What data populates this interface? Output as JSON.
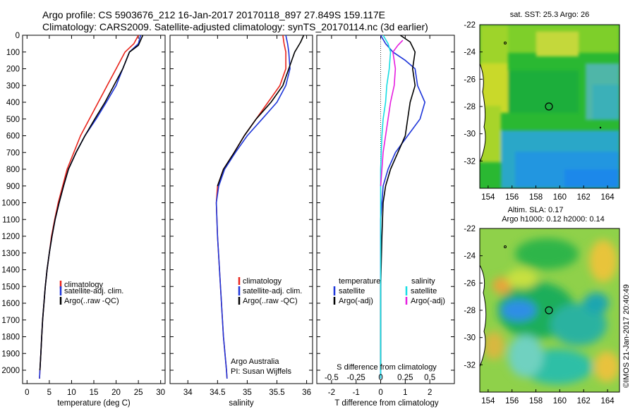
{
  "header": {
    "line1": "Argo profile: CS 5903676_212 16-Jan-2017 20170118_897 27.849S 159.117E",
    "line2": "Climatology: CARS2009. Satellite-adjusted climatology: synTS_20170114.nc (3d earlier)"
  },
  "colors": {
    "climatology": "#e8231a",
    "satellite": "#1d35d9",
    "argo": "#000000",
    "sat_salinity": "#16dde3",
    "argo_salinity": "#e51ddf"
  },
  "chart_data": [
    {
      "type": "line",
      "name": "temperature-profile",
      "xlabel": "temperature (deg C)",
      "ylabel": "",
      "xlim": [
        -1,
        31
      ],
      "ylim": [
        2080,
        0
      ],
      "xticks": [
        0,
        5,
        10,
        15,
        20,
        25,
        30
      ],
      "yticks": [
        0,
        100,
        200,
        300,
        400,
        500,
        600,
        700,
        800,
        900,
        1000,
        1100,
        1200,
        1300,
        1400,
        1500,
        1600,
        1700,
        1800,
        1900,
        2000
      ],
      "legend": [
        "climatology",
        "satellite-adj. clim.",
        "Argo(..raw -QC)"
      ],
      "series": [
        {
          "id": "climatology",
          "color": "#e8231a",
          "points": [
            [
              25,
              0
            ],
            [
              24,
              50
            ],
            [
              22,
              100
            ],
            [
              20,
              200
            ],
            [
              18,
              300
            ],
            [
              16,
              400
            ],
            [
              14,
              500
            ],
            [
              12,
              600
            ],
            [
              10.5,
              700
            ],
            [
              9,
              800
            ],
            [
              8,
              900
            ],
            [
              7,
              1000
            ],
            [
              6.2,
              1100
            ],
            [
              5.5,
              1200
            ],
            [
              5,
              1300
            ],
            [
              4.5,
              1400
            ],
            [
              4.1,
              1500
            ],
            [
              3.8,
              1600
            ],
            [
              3.5,
              1700
            ],
            [
              3.3,
              1800
            ],
            [
              3.1,
              1900
            ],
            [
              2.9,
              2000
            ],
            [
              2.8,
              2050
            ]
          ]
        },
        {
          "id": "satellite",
          "color": "#1d35d9",
          "points": [
            [
              25.5,
              0
            ],
            [
              25,
              50
            ],
            [
              23,
              100
            ],
            [
              21.5,
              200
            ],
            [
              20,
              300
            ],
            [
              17.8,
              400
            ],
            [
              15.5,
              500
            ],
            [
              13,
              600
            ],
            [
              11,
              700
            ],
            [
              9.3,
              800
            ],
            [
              8.2,
              900
            ],
            [
              7.2,
              1000
            ],
            [
              6.3,
              1100
            ],
            [
              5.6,
              1200
            ],
            [
              5,
              1300
            ],
            [
              4.5,
              1400
            ],
            [
              4.1,
              1500
            ],
            [
              3.8,
              1600
            ],
            [
              3.5,
              1700
            ],
            [
              3.3,
              1800
            ],
            [
              3.1,
              1900
            ],
            [
              2.9,
              2000
            ],
            [
              2.8,
              2050
            ]
          ]
        },
        {
          "id": "argo",
          "color": "#000000",
          "points": [
            [
              26,
              0
            ],
            [
              25.5,
              30
            ],
            [
              25,
              60
            ],
            [
              23,
              100
            ],
            [
              21.5,
              200
            ],
            [
              19.5,
              300
            ],
            [
              17.5,
              400
            ],
            [
              15.2,
              500
            ],
            [
              13,
              600
            ],
            [
              11,
              700
            ],
            [
              9.3,
              800
            ],
            [
              8.2,
              900
            ],
            [
              7.2,
              1000
            ],
            [
              6.3,
              1100
            ],
            [
              5.6,
              1200
            ],
            [
              5,
              1300
            ],
            [
              4.5,
              1400
            ],
            [
              4.1,
              1500
            ],
            [
              3.8,
              1600
            ],
            [
              3.5,
              1700
            ],
            [
              3.3,
              1800
            ],
            [
              3.1,
              1900
            ],
            [
              2.9,
              2000
            ]
          ]
        }
      ]
    },
    {
      "type": "line",
      "name": "salinity-profile",
      "xlabel": "salinity",
      "ylabel": "",
      "xlim": [
        33.7,
        36.1
      ],
      "ylim": [
        2080,
        0
      ],
      "xticks": [
        34,
        34.5,
        35,
        35.5,
        36
      ],
      "legend": [
        "climatology",
        "satellite-adj. clim.",
        "Argo(..raw -QC)"
      ],
      "annotation": [
        "Argo Australia",
        "PI: Susan Wijffels"
      ],
      "series": [
        {
          "id": "climatology",
          "color": "#e8231a",
          "points": [
            [
              35.6,
              0
            ],
            [
              35.62,
              50
            ],
            [
              35.65,
              100
            ],
            [
              35.65,
              200
            ],
            [
              35.55,
              300
            ],
            [
              35.35,
              400
            ],
            [
              35.15,
              500
            ],
            [
              34.95,
              600
            ],
            [
              34.78,
              700
            ],
            [
              34.6,
              800
            ],
            [
              34.5,
              900
            ],
            [
              34.48,
              1000
            ],
            [
              34.5,
              1200
            ],
            [
              34.55,
              1500
            ],
            [
              34.6,
              1800
            ],
            [
              34.65,
              2000
            ],
            [
              34.66,
              2050
            ]
          ]
        },
        {
          "id": "satellite",
          "color": "#1d35d9",
          "points": [
            [
              35.65,
              0
            ],
            [
              35.68,
              50
            ],
            [
              35.7,
              100
            ],
            [
              35.72,
              200
            ],
            [
              35.65,
              300
            ],
            [
              35.5,
              400
            ],
            [
              35.25,
              500
            ],
            [
              35,
              600
            ],
            [
              34.8,
              700
            ],
            [
              34.62,
              800
            ],
            [
              34.52,
              900
            ],
            [
              34.48,
              1000
            ],
            [
              34.5,
              1200
            ],
            [
              34.55,
              1500
            ],
            [
              34.6,
              1800
            ],
            [
              34.65,
              2000
            ],
            [
              34.66,
              2050
            ]
          ]
        },
        {
          "id": "argo",
          "color": "#000000",
          "points": [
            [
              35.95,
              0
            ],
            [
              35.9,
              40
            ],
            [
              35.85,
              70
            ],
            [
              35.8,
              100
            ],
            [
              35.75,
              150
            ],
            [
              35.7,
              200
            ],
            [
              35.6,
              300
            ],
            [
              35.4,
              400
            ],
            [
              35.15,
              500
            ],
            [
              34.95,
              600
            ],
            [
              34.78,
              700
            ],
            [
              34.6,
              800
            ],
            [
              34.5,
              900
            ]
          ]
        }
      ]
    },
    {
      "type": "line",
      "name": "difference-profile",
      "xlabel": "T difference from climatology",
      "ylabel": "",
      "xlim": [
        -2.6,
        3.0
      ],
      "ylim": [
        2080,
        0
      ],
      "xticks": [
        -2,
        -1,
        0,
        1,
        2
      ],
      "secondary_axis": {
        "label": "S difference from climatology",
        "ticks": [
          "-0.5",
          "-0.25",
          "0",
          "0.25",
          "0.5"
        ]
      },
      "legend": {
        "left_title": "temperature",
        "left": [
          "satellite",
          "Argo(-adj)"
        ],
        "right_title": "salinity",
        "right": [
          "satellite",
          "Argo(-adj)"
        ]
      },
      "series": [
        {
          "id": "t-satellite",
          "color": "#1d35d9",
          "points": [
            [
              0,
              0
            ],
            [
              0.2,
              50
            ],
            [
              0.5,
              100
            ],
            [
              1,
              150
            ],
            [
              1.4,
              200
            ],
            [
              1.5,
              300
            ],
            [
              1.8,
              400
            ],
            [
              1.6,
              500
            ],
            [
              1.1,
              600
            ],
            [
              0.6,
              700
            ],
            [
              0.3,
              800
            ],
            [
              0.1,
              900
            ],
            [
              0.05,
              1000
            ],
            [
              0,
              1100
            ],
            [
              0,
              2050
            ]
          ]
        },
        {
          "id": "t-argo",
          "color": "#000000",
          "points": [
            [
              0.8,
              0
            ],
            [
              1.2,
              40
            ],
            [
              1.4,
              100
            ],
            [
              1.3,
              200
            ],
            [
              1.4,
              300
            ],
            [
              1.2,
              400
            ],
            [
              1.1,
              500
            ],
            [
              1,
              600
            ],
            [
              0.7,
              700
            ],
            [
              0.4,
              800
            ],
            [
              0.2,
              900
            ],
            [
              0.1,
              1000
            ],
            [
              0.05,
              1200
            ],
            [
              0,
              1500
            ],
            [
              0,
              2000
            ]
          ]
        },
        {
          "id": "s-satellite",
          "color": "#16dde3",
          "points": [
            [
              0.1,
              0
            ],
            [
              0.3,
              50
            ],
            [
              0.4,
              100
            ],
            [
              0.35,
              200
            ],
            [
              0.25,
              300
            ],
            [
              0.2,
              400
            ],
            [
              0.1,
              500
            ],
            [
              0.05,
              600
            ],
            [
              0,
              800
            ],
            [
              0,
              2050
            ]
          ]
        },
        {
          "id": "s-argo",
          "color": "#e51ddf",
          "points": [
            [
              0.9,
              30
            ],
            [
              0.7,
              60
            ],
            [
              0.5,
              100
            ],
            [
              0.6,
              200
            ],
            [
              0.55,
              300
            ],
            [
              0.4,
              400
            ],
            [
              0.3,
              500
            ],
            [
              0.2,
              600
            ],
            [
              0.1,
              700
            ],
            [
              0.05,
              800
            ],
            [
              0,
              900
            ]
          ]
        }
      ]
    }
  ],
  "maps": [
    {
      "name": "sst-map",
      "title": "sat. SST: 25.3 Argo: 26",
      "xticks": [
        154,
        156,
        158,
        160,
        162,
        164
      ],
      "yticks": [
        -22,
        -24,
        -26,
        -28,
        -30,
        -32
      ],
      "xlim": [
        153.3,
        165
      ],
      "ylim": [
        -34,
        -22
      ]
    },
    {
      "name": "sla-map",
      "title1": "Altim. SLA: 0.17",
      "title2": "Argo h1000: 0.12 h2000: 0.14",
      "xticks": [
        154,
        156,
        158,
        160,
        162,
        164
      ],
      "yticks": [
        -22,
        -24,
        -26,
        -28,
        -30,
        -32
      ],
      "xlim": [
        153.3,
        165
      ],
      "ylim": [
        -34,
        -22
      ]
    }
  ],
  "credit": "©IMOS 21-Jan-2017 20:40:49"
}
